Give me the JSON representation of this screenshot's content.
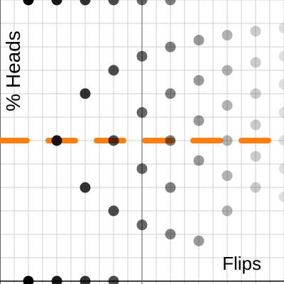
{
  "chart_data": {
    "type": "scatter",
    "title": "",
    "xlabel": "Flips",
    "ylabel": "% Heads",
    "xlim": [
      0,
      10
    ],
    "ylim": [
      0,
      1
    ],
    "grid": true,
    "reference_line": {
      "y": 0.5,
      "style": "dashed",
      "color": "#ff7f0e"
    },
    "point_color": "#000000",
    "fade_with_x": true,
    "points": [
      {
        "x": 1,
        "y": 0
      },
      {
        "x": 1,
        "y": 1
      },
      {
        "x": 2,
        "y": 0
      },
      {
        "x": 2,
        "y": 0.5
      },
      {
        "x": 2,
        "y": 1
      },
      {
        "x": 3,
        "y": 0
      },
      {
        "x": 3,
        "y": 0.333
      },
      {
        "x": 3,
        "y": 0.667
      },
      {
        "x": 3,
        "y": 1
      },
      {
        "x": 4,
        "y": 0
      },
      {
        "x": 4,
        "y": 0.25
      },
      {
        "x": 4,
        "y": 0.5
      },
      {
        "x": 4,
        "y": 0.75
      },
      {
        "x": 4,
        "y": 1
      },
      {
        "x": 5,
        "y": 0.2
      },
      {
        "x": 5,
        "y": 0.4
      },
      {
        "x": 5,
        "y": 0.6
      },
      {
        "x": 5,
        "y": 0.8
      },
      {
        "x": 5,
        "y": 1
      },
      {
        "x": 6,
        "y": 0.167
      },
      {
        "x": 6,
        "y": 0.333
      },
      {
        "x": 6,
        "y": 0.5
      },
      {
        "x": 6,
        "y": 0.667
      },
      {
        "x": 6,
        "y": 0.833
      },
      {
        "x": 6,
        "y": 1
      },
      {
        "x": 7,
        "y": 0.143
      },
      {
        "x": 7,
        "y": 0.429
      },
      {
        "x": 7,
        "y": 0.571
      },
      {
        "x": 7,
        "y": 0.714
      },
      {
        "x": 7,
        "y": 0.857
      },
      {
        "x": 8,
        "y": 0.25
      },
      {
        "x": 8,
        "y": 0.375
      },
      {
        "x": 8,
        "y": 0.5
      },
      {
        "x": 8,
        "y": 0.625
      },
      {
        "x": 8,
        "y": 0.75
      },
      {
        "x": 8,
        "y": 0.875
      },
      {
        "x": 9,
        "y": 0.333
      },
      {
        "x": 9,
        "y": 0.444
      },
      {
        "x": 9,
        "y": 0.556
      },
      {
        "x": 9,
        "y": 0.667
      },
      {
        "x": 9,
        "y": 0.778
      },
      {
        "x": 9,
        "y": 0.889
      },
      {
        "x": 10,
        "y": 0.3
      },
      {
        "x": 10,
        "y": 0.4
      },
      {
        "x": 10,
        "y": 0.5
      },
      {
        "x": 10,
        "y": 0.6
      },
      {
        "x": 10,
        "y": 0.7
      },
      {
        "x": 10,
        "y": 0.8
      },
      {
        "x": 10,
        "y": 0.9
      }
    ]
  }
}
